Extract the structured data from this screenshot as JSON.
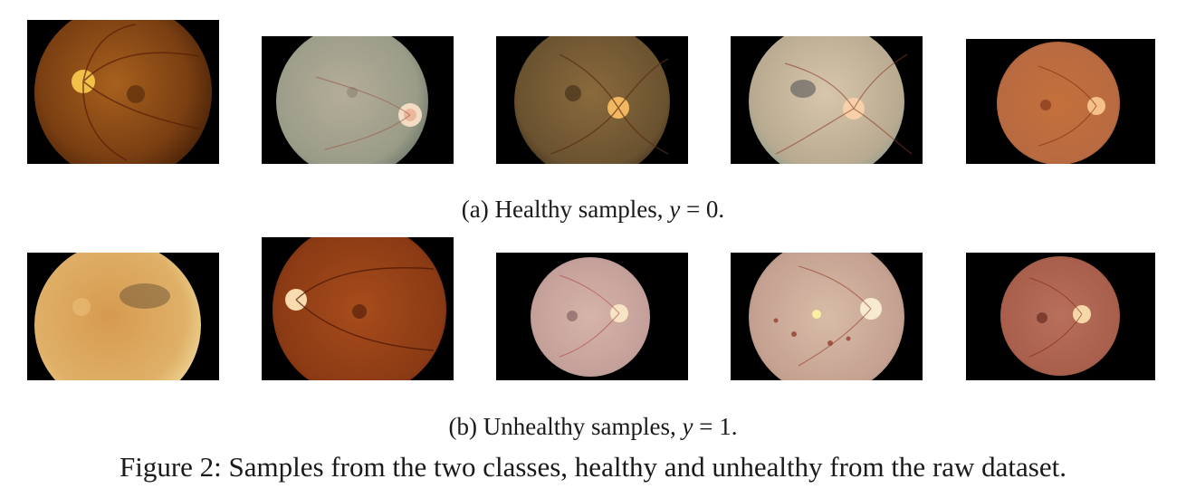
{
  "subfigure_a": {
    "label": "(a) Healthy samples,",
    "math_var": "y",
    "math_rest": " = 0.",
    "images": [
      {
        "name": "healthy-sample-1"
      },
      {
        "name": "healthy-sample-2"
      },
      {
        "name": "healthy-sample-3"
      },
      {
        "name": "healthy-sample-4"
      },
      {
        "name": "healthy-sample-5"
      }
    ]
  },
  "subfigure_b": {
    "label": "(b) Unhealthy samples,",
    "math_var": "y",
    "math_rest": " = 1.",
    "images": [
      {
        "name": "unhealthy-sample-1"
      },
      {
        "name": "unhealthy-sample-2"
      },
      {
        "name": "unhealthy-sample-3"
      },
      {
        "name": "unhealthy-sample-4"
      },
      {
        "name": "unhealthy-sample-5"
      }
    ]
  },
  "figure_caption": "Figure 2: Samples from the two classes, healthy and unhealthy from the raw dataset."
}
